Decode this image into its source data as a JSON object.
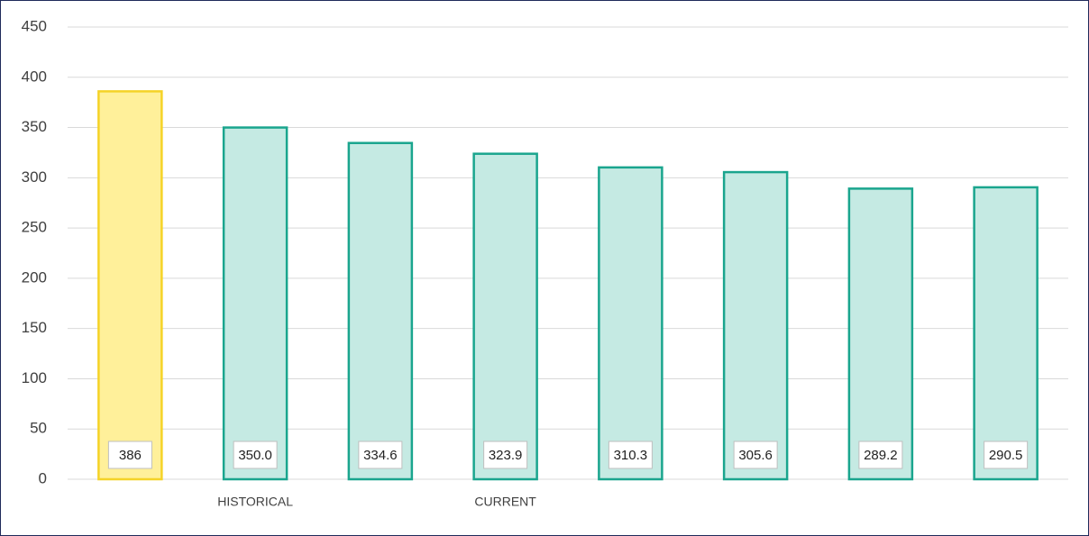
{
  "chart_data": {
    "type": "bar",
    "categories": [
      null,
      "HISTORICAL",
      null,
      "CURRENT",
      null,
      null,
      null,
      null
    ],
    "values": [
      386,
      350,
      334.6,
      323.9,
      310.3,
      305.6,
      289.2,
      290.5
    ],
    "value_labels": [
      "386",
      "350.0",
      "334.6",
      "323.9",
      "310.3",
      "305.6",
      "289.2",
      "290.5"
    ],
    "colors": [
      "#fff09a",
      "#c5eae3",
      "#c5eae3",
      "#c5eae3",
      "#c5eae3",
      "#c5eae3",
      "#c5eae3",
      "#c5eae3"
    ],
    "edge_colors": [
      "#f5d327",
      "#1aa58e",
      "#1aa58e",
      "#1aa58e",
      "#1aa58e",
      "#1aa58e",
      "#1aa58e",
      "#1aa58e"
    ],
    "ylim": [
      0,
      450
    ],
    "yticks": [
      0,
      50,
      100,
      150,
      200,
      250,
      300,
      350,
      400,
      450
    ],
    "grid": true
  }
}
